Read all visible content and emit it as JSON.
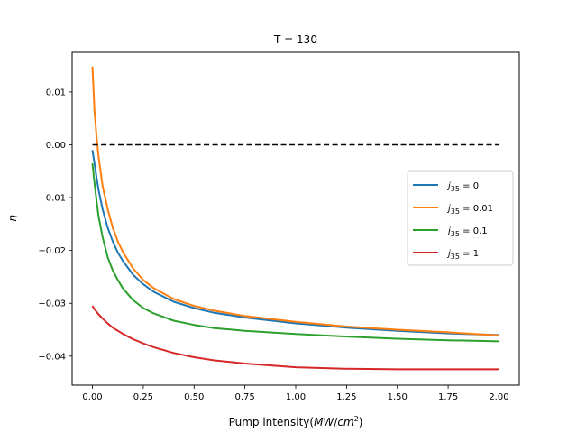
{
  "chart_data": {
    "type": "line",
    "title": "T = 130",
    "xlabel": "Pump  intensity(MW/cm²)",
    "ylabel": "η",
    "xlim": [
      -0.1,
      2.1
    ],
    "ylim": [
      -0.0455,
      0.0175
    ],
    "xticks": [
      "0.00",
      "0.25",
      "0.50",
      "0.75",
      "1.00",
      "1.25",
      "1.50",
      "1.75",
      "2.00"
    ],
    "yticks": [
      "0.01",
      "0.00",
      "−0.01",
      "−0.02",
      "−0.03",
      "−0.04"
    ],
    "grid": false,
    "legend_position": "center-right",
    "x": [
      0.0,
      0.01,
      0.02,
      0.03,
      0.05,
      0.075,
      0.1,
      0.125,
      0.15,
      0.2,
      0.25,
      0.3,
      0.4,
      0.5,
      0.6,
      0.75,
      1.0,
      1.25,
      1.5,
      1.75,
      2.0
    ],
    "series": [
      {
        "name": "j35 = 0",
        "label_base": "j",
        "label_sub": "35",
        "label_suffix": " = 0",
        "color": "#1f77b4",
        "values": [
          -0.001,
          -0.0035,
          -0.0062,
          -0.0085,
          -0.0122,
          -0.0157,
          -0.0183,
          -0.0204,
          -0.022,
          -0.0246,
          -0.0264,
          -0.0278,
          -0.0297,
          -0.0309,
          -0.0318,
          -0.0327,
          -0.0338,
          -0.0346,
          -0.0352,
          -0.0357,
          -0.036
        ]
      },
      {
        "name": "j35 = 0.01",
        "label_base": "j",
        "label_sub": "35",
        "label_suffix": " = 0.01",
        "color": "#ff7f0e",
        "values": [
          0.0148,
          0.0065,
          0.0015,
          -0.0022,
          -0.0078,
          -0.0122,
          -0.0157,
          -0.0183,
          -0.0203,
          -0.0234,
          -0.0256,
          -0.0271,
          -0.0292,
          -0.0305,
          -0.0314,
          -0.0324,
          -0.0335,
          -0.0344,
          -0.035,
          -0.0355,
          -0.0361
        ]
      },
      {
        "name": "j35 = 0.1",
        "label_base": "j",
        "label_sub": "35",
        "label_suffix": " = 0.1",
        "color": "#2ca02c",
        "values": [
          -0.0035,
          -0.0072,
          -0.0106,
          -0.0135,
          -0.0175,
          -0.0213,
          -0.0238,
          -0.0256,
          -0.0272,
          -0.0294,
          -0.0309,
          -0.0319,
          -0.0333,
          -0.0341,
          -0.0347,
          -0.0352,
          -0.0358,
          -0.0363,
          -0.0367,
          -0.037,
          -0.0372
        ]
      },
      {
        "name": "j35 = 1",
        "label_base": "j",
        "label_sub": "35",
        "label_suffix": " = 1",
        "color": "#d62728",
        "values": [
          -0.0305,
          -0.0311,
          -0.0316,
          -0.0321,
          -0.0329,
          -0.0338,
          -0.0346,
          -0.0352,
          -0.0358,
          -0.0368,
          -0.0376,
          -0.0383,
          -0.0394,
          -0.0402,
          -0.0408,
          -0.0414,
          -0.0421,
          -0.0424,
          -0.0425,
          -0.0425,
          -0.0425
        ]
      }
    ],
    "reference_line": {
      "y": 0.0,
      "x_range": [
        0.0,
        2.0
      ],
      "style": "dashed",
      "color": "#000000"
    }
  }
}
